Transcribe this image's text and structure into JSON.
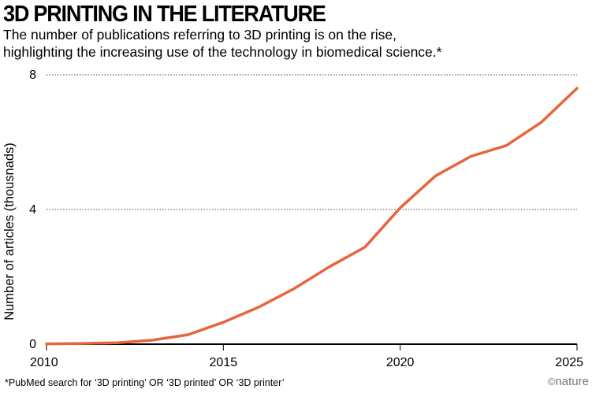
{
  "title": "3D PRINTING IN THE LITERATURE",
  "subtitle_lines": [
    "The number of publications referring to 3D printing is on the rise,",
    "highlighting the increasing use of the technology in biomedical science.*"
  ],
  "footnote": "*PubMed search for ‘3D printing’ OR ‘3D printed’ OR ‘3D printer’",
  "credit": {
    "symbol": "©",
    "name": "nature"
  },
  "chart_data": {
    "type": "line",
    "title": "3D PRINTING IN THE LITERATURE",
    "xlabel": "",
    "ylabel": "Number of articles (thousnads)",
    "xlim": [
      2010,
      2025
    ],
    "ylim": [
      0,
      8
    ],
    "x_ticks": [
      2010,
      2015,
      2020,
      2025
    ],
    "y_ticks": [
      0,
      4,
      8
    ],
    "grid": "horizontal dotted",
    "line_color": "#e8643a",
    "series": [
      {
        "x": [
          2010,
          2011,
          2012,
          2013,
          2014,
          2015,
          2016,
          2017,
          2018,
          2019,
          2020,
          2021,
          2022,
          2023,
          2024,
          2025
        ],
        "y": [
          0.01,
          0.02,
          0.04,
          0.12,
          0.28,
          0.65,
          1.1,
          1.65,
          2.3,
          2.88,
          4.05,
          5.0,
          5.58,
          5.9,
          6.6,
          7.6
        ]
      }
    ]
  }
}
